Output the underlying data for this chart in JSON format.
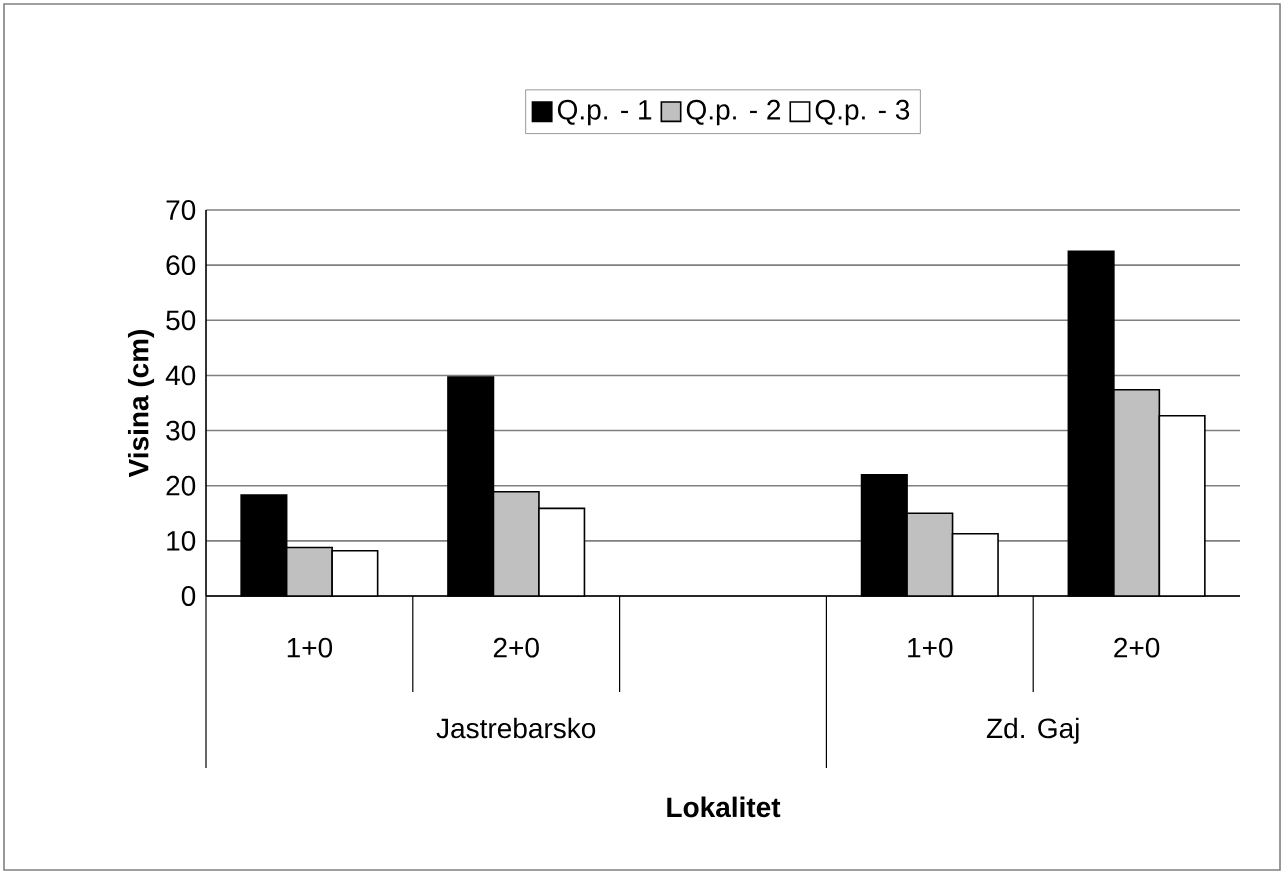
{
  "chart_data": {
    "type": "bar",
    "xlabel": "Lokalitet",
    "ylabel": "Visina (cm)",
    "categories": [
      "1+0",
      "2+0",
      null,
      "1+0",
      "2+0"
    ],
    "series": [
      {
        "name": "Q.p. - 1",
        "color": "#000000",
        "values": [
          18.3,
          39.7,
          null,
          22.0,
          62.5
        ]
      },
      {
        "name": "Q.p. - 2",
        "color": "#c0c0c0",
        "values": [
          8.8,
          18.9,
          null,
          15.0,
          37.4
        ]
      },
      {
        "name": "Q.p. - 3",
        "color": "#ffffff",
        "values": [
          8.2,
          15.9,
          null,
          11.3,
          32.7
        ]
      }
    ],
    "annotations": [
      "Jastrebarsko",
      "Zd. Gaj"
    ],
    "ylim": [
      0,
      70
    ],
    "yticks": [
      0,
      10,
      20,
      30,
      40,
      50,
      60,
      70
    ],
    "grid": "y",
    "legend": "top"
  }
}
